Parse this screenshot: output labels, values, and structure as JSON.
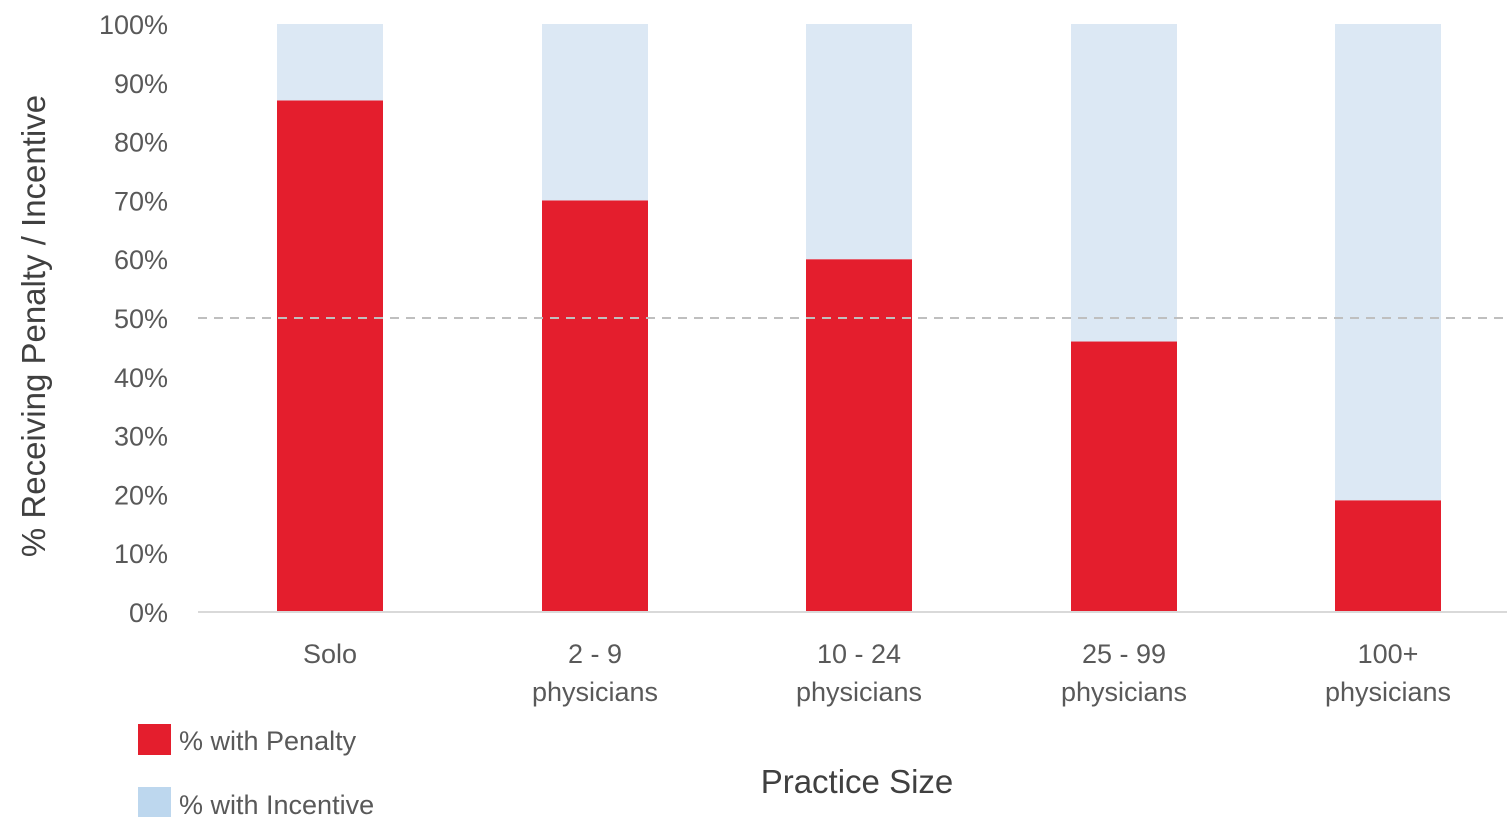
{
  "chart_data": {
    "type": "bar",
    "stacked": true,
    "categories": [
      [
        "Solo"
      ],
      [
        "2 - 9",
        "physicians"
      ],
      [
        "10 - 24",
        "physicians"
      ],
      [
        "25 - 99",
        "physicians"
      ],
      [
        "100+",
        "physicians"
      ]
    ],
    "series": [
      {
        "name": "% with Penalty",
        "color": "#e41e2d",
        "values": [
          87,
          70,
          60,
          46,
          19
        ]
      },
      {
        "name": "% with Incentive",
        "color": "#dce8f4",
        "values": [
          13,
          30,
          40,
          54,
          81
        ]
      }
    ],
    "title": "",
    "xlabel": "Practice Size",
    "ylabel": "% Receiving Penalty / Incentive",
    "ylim": [
      0,
      100
    ],
    "yticks": [
      "0%",
      "10%",
      "20%",
      "30%",
      "40%",
      "50%",
      "60%",
      "70%",
      "80%",
      "90%",
      "100%"
    ],
    "reference_line": {
      "value": 50,
      "style": "dashed",
      "color": "#bfbfbf"
    },
    "legend": {
      "placement": "bottom-left",
      "items": [
        {
          "label": "% with Penalty",
          "color": "#e41e2d"
        },
        {
          "label": "% with Incentive",
          "color": "#bdd7ee"
        }
      ]
    },
    "grid": false
  }
}
